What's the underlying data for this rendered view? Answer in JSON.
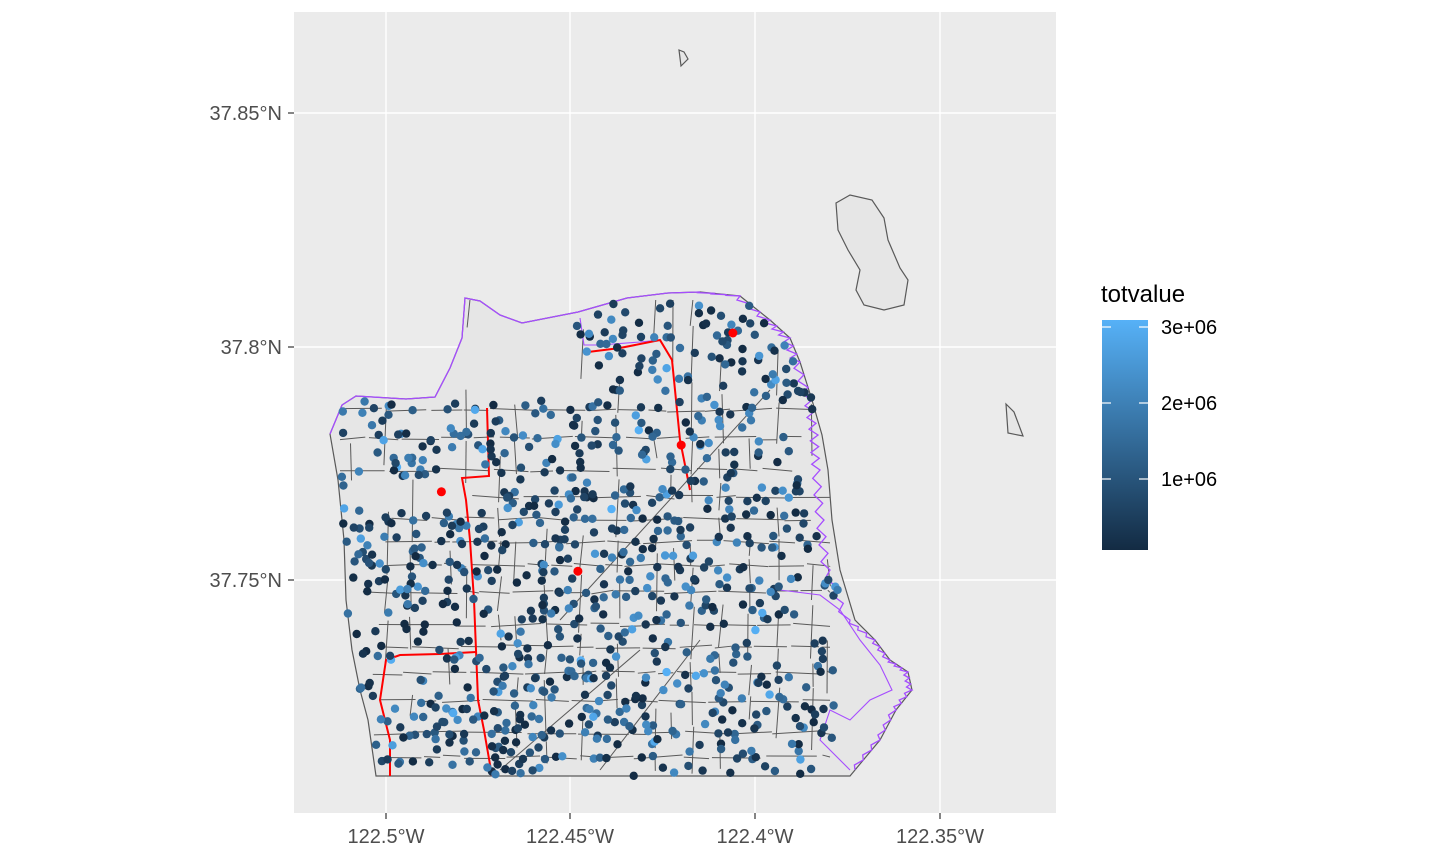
{
  "chart_data": {
    "type": "scatter",
    "x_ticks": [
      "122.5°W",
      "122.45°W",
      "122.4°W",
      "122.35°W"
    ],
    "y_ticks": [
      "37.85°N",
      "37.8°N",
      "37.75°N"
    ],
    "x_tick_values": [
      -122.5,
      -122.45,
      -122.4,
      -122.35
    ],
    "y_tick_values": [
      37.85,
      37.8,
      37.75
    ],
    "xlim": [
      -122.525,
      -122.32
    ],
    "ylim": [
      37.705,
      37.874
    ],
    "grid": true,
    "background_color": "#ebebeb",
    "legend": {
      "title": "totvalue",
      "placement": "right",
      "labels": [
        "3e+06",
        "2e+06",
        "1e+06"
      ],
      "label_values": [
        3000000,
        2000000,
        1000000
      ],
      "range": [
        0,
        3300000
      ],
      "color_low": "#132b43",
      "color_high": "#56b1f7"
    },
    "highlight_color": "#ff0000",
    "highlight_points": [
      [
        -122.406,
        37.803
      ],
      [
        -122.42,
        37.779
      ],
      [
        -122.485,
        37.769
      ],
      [
        -122.448,
        37.752
      ]
    ],
    "boundary_color": "#a64dff",
    "route_color": "#ff0000",
    "parcel_line_color": "#595959",
    "point_count": 900
  }
}
